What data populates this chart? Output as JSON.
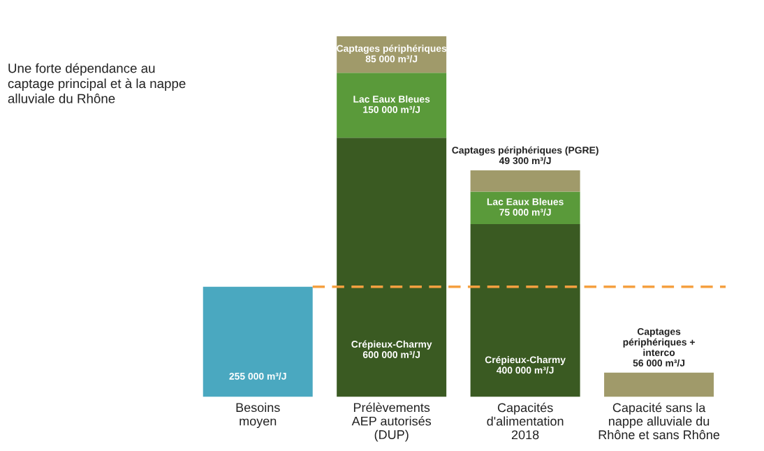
{
  "chart_data": {
    "type": "bar",
    "stacked": true,
    "categories": [
      "Besoins\nmoyen",
      "Prélèvements\nAEP autorisés\n(DUP)",
      "Capacités\nd'alimentation\n2018",
      "Capacité sans la\nnappe alluviale du\nRhône et sans Rhône"
    ],
    "series": [
      {
        "color": "#4aa8c0",
        "values": [
          255000,
          null,
          null,
          null
        ],
        "value_labels": [
          "255 000 m³/J",
          null,
          null,
          null
        ]
      },
      {
        "color": "#3a5a22",
        "values": [
          null,
          600000,
          400000,
          null
        ],
        "value_labels": [
          null,
          "Crépieux-Charmy\n600 000 m³/J",
          "Crépieux-Charmy\n400 000 m³/J",
          null
        ]
      },
      {
        "color": "#5a9a3a",
        "values": [
          null,
          150000,
          75000,
          null
        ],
        "value_labels": [
          null,
          "Lac Eaux Bleues\n150 000 m³/J",
          "Lac Eaux Bleues\n75 000 m³/J",
          null
        ]
      },
      {
        "color": "#a09a6a",
        "values": [
          null,
          85000,
          49300,
          56000
        ],
        "value_labels": [
          null,
          "Captages périphériques\n85 000 m³/J",
          "Captages périphériques (PGRE)\n49 300 m³/J",
          "Captages\npériphériques +\ninterco\n56 000 m³/J"
        ]
      }
    ],
    "ref_lines": [
      {
        "axis": "y",
        "value": 255000,
        "color": "#f5a040",
        "line_style": "dashed"
      }
    ],
    "annotations": [
      "Une forte dépendance au\ncaptage principal et à la nappe\nalluviale du Rhône"
    ]
  }
}
